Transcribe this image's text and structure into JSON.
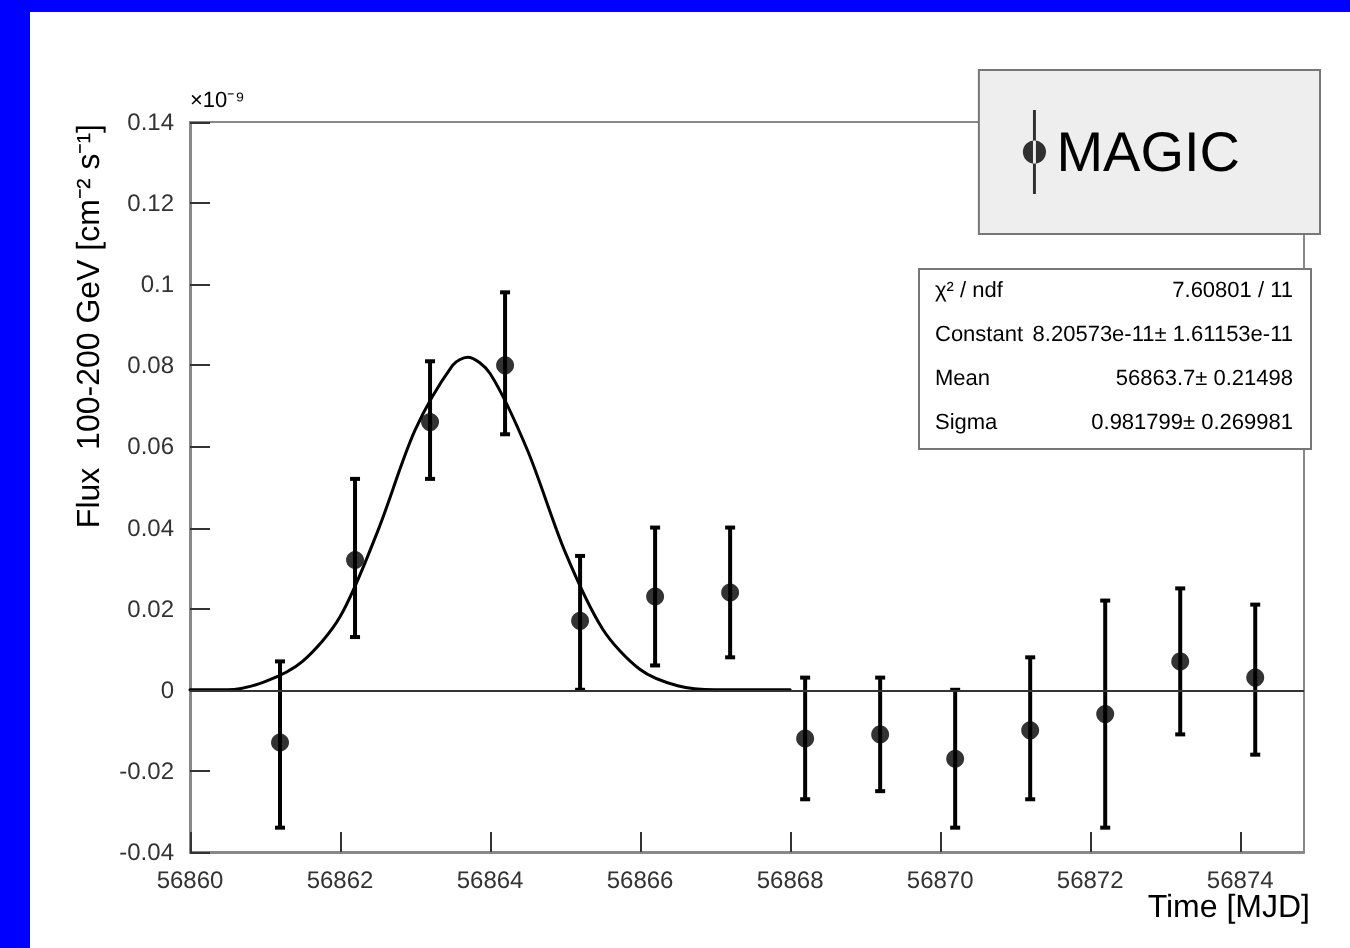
{
  "chart_data": {
    "type": "scatter",
    "xlabel": "Time [MJD]",
    "ylabel": "Flux  100-200 GeV [cm⁻² s⁻¹]",
    "xlim": [
      56860,
      56874.85
    ],
    "xticks": [
      56860,
      56862,
      56864,
      56866,
      56868,
      56870,
      56872,
      56874
    ],
    "ylim": [
      -0.04,
      0.14
    ],
    "yticks": [
      -0.04,
      -0.02,
      0,
      0.02,
      0.04,
      0.06,
      0.08,
      0.1,
      0.12,
      0.14
    ],
    "grid": false,
    "legend": "top right",
    "marker": "circle",
    "ref_lines": [
      {
        "axis": "y",
        "value": 0,
        "color": "#333333"
      }
    ],
    "annotations": [
      "×10⁻⁹",
      "χ² / ndf",
      "7.60801 / 11",
      "Constant",
      "8.20573e-11± 1.61153e-11",
      "Mean",
      "56863.7± 0.21498",
      "Sigma",
      "0.981799± 0.269981"
    ],
    "series": [
      {
        "name": "MAGIC",
        "color": "#000000",
        "x": [
          56861.2,
          56862.2,
          56863.2,
          56864.2,
          56865.2,
          56866.2,
          56867.2,
          56868.2,
          56869.2,
          56870.2,
          56871.2,
          56872.2,
          56873.2,
          56874.2
        ],
        "values": [
          -0.013,
          0.032,
          0.066,
          0.08,
          0.017,
          0.023,
          0.024,
          -0.012,
          -0.011,
          -0.017,
          -0.01,
          -0.006,
          0.007,
          0.003
        ],
        "errors": [
          [
            -0.034,
            0.007
          ],
          [
            0.013,
            0.052
          ],
          [
            0.052,
            0.081
          ],
          [
            0.063,
            0.098
          ],
          [
            0.0,
            0.033
          ],
          [
            0.006,
            0.04
          ],
          [
            0.008,
            0.04
          ],
          [
            -0.027,
            0.003
          ],
          [
            -0.025,
            0.003
          ],
          [
            -0.034,
            0.0
          ],
          [
            -0.027,
            0.008
          ],
          [
            -0.034,
            0.022
          ],
          [
            -0.011,
            0.025
          ],
          [
            -0.016,
            0.021
          ]
        ]
      },
      {
        "type": "line",
        "color": "#000000",
        "marker": "none",
        "x": [
          56860,
          56860.5,
          56861,
          56861.5,
          56862,
          56862.5,
          56863,
          56863.5,
          56863.7,
          56864,
          56864.5,
          56865,
          56865.5,
          56866,
          56866.5,
          56867,
          56868
        ],
        "values": [
          0.0,
          0.0,
          0.002,
          0.007,
          0.018,
          0.039,
          0.064,
          0.08,
          0.082,
          0.078,
          0.059,
          0.034,
          0.015,
          0.005,
          0.001,
          0.0,
          0.0
        ]
      }
    ]
  }
}
